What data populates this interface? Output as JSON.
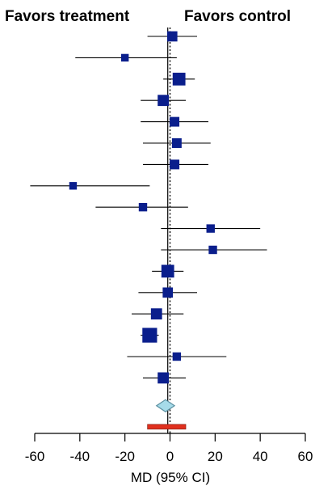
{
  "chart_data": {
    "type": "forest",
    "left_label": "Favors treatment",
    "right_label": "Favors control",
    "xlabel": "MD (95% CI)",
    "xlim": [
      -60,
      60
    ],
    "xticks": [
      -60,
      -40,
      -20,
      0,
      20,
      40,
      60
    ],
    "null_line": 0,
    "pooled_line": -1,
    "studies": [
      {
        "estimate": 1,
        "lower": -10,
        "upper": 12,
        "weight": 3
      },
      {
        "estimate": -20,
        "lower": -42,
        "upper": 3,
        "weight": 1
      },
      {
        "estimate": 4,
        "lower": -3,
        "upper": 11,
        "weight": 6
      },
      {
        "estimate": -3,
        "lower": -13,
        "upper": 7,
        "weight": 4
      },
      {
        "estimate": 2,
        "lower": -13,
        "upper": 17,
        "weight": 2.5
      },
      {
        "estimate": 3,
        "lower": -12,
        "upper": 18,
        "weight": 2.5
      },
      {
        "estimate": 2,
        "lower": -12,
        "upper": 17,
        "weight": 2.5
      },
      {
        "estimate": -43,
        "lower": -62,
        "upper": -9,
        "weight": 1
      },
      {
        "estimate": -12,
        "lower": -33,
        "upper": 8,
        "weight": 1.5
      },
      {
        "estimate": 18,
        "lower": -4,
        "upper": 40,
        "weight": 1.5
      },
      {
        "estimate": 19,
        "lower": -4,
        "upper": 43,
        "weight": 1.5
      },
      {
        "estimate": -1,
        "lower": -8,
        "upper": 6,
        "weight": 6
      },
      {
        "estimate": -1,
        "lower": -14,
        "upper": 12,
        "weight": 3
      },
      {
        "estimate": -6,
        "lower": -17,
        "upper": 6,
        "weight": 4
      },
      {
        "estimate": -9,
        "lower": -13,
        "upper": -5,
        "weight": 9
      },
      {
        "estimate": 3,
        "lower": -19,
        "upper": 25,
        "weight": 1.5
      },
      {
        "estimate": -3,
        "lower": -12,
        "upper": 7,
        "weight": 4
      }
    ],
    "pooled": {
      "estimate": -2,
      "lower": -6,
      "upper": 2
    },
    "prediction_interval": {
      "lower": -10,
      "upper": 7
    },
    "colors": {
      "marker": "#0a1e8c",
      "diamond_fill": "#a6dbe9",
      "diamond_stroke": "#5a8fa0",
      "prediction_bar": "#e0301e",
      "line": "#000000"
    }
  }
}
